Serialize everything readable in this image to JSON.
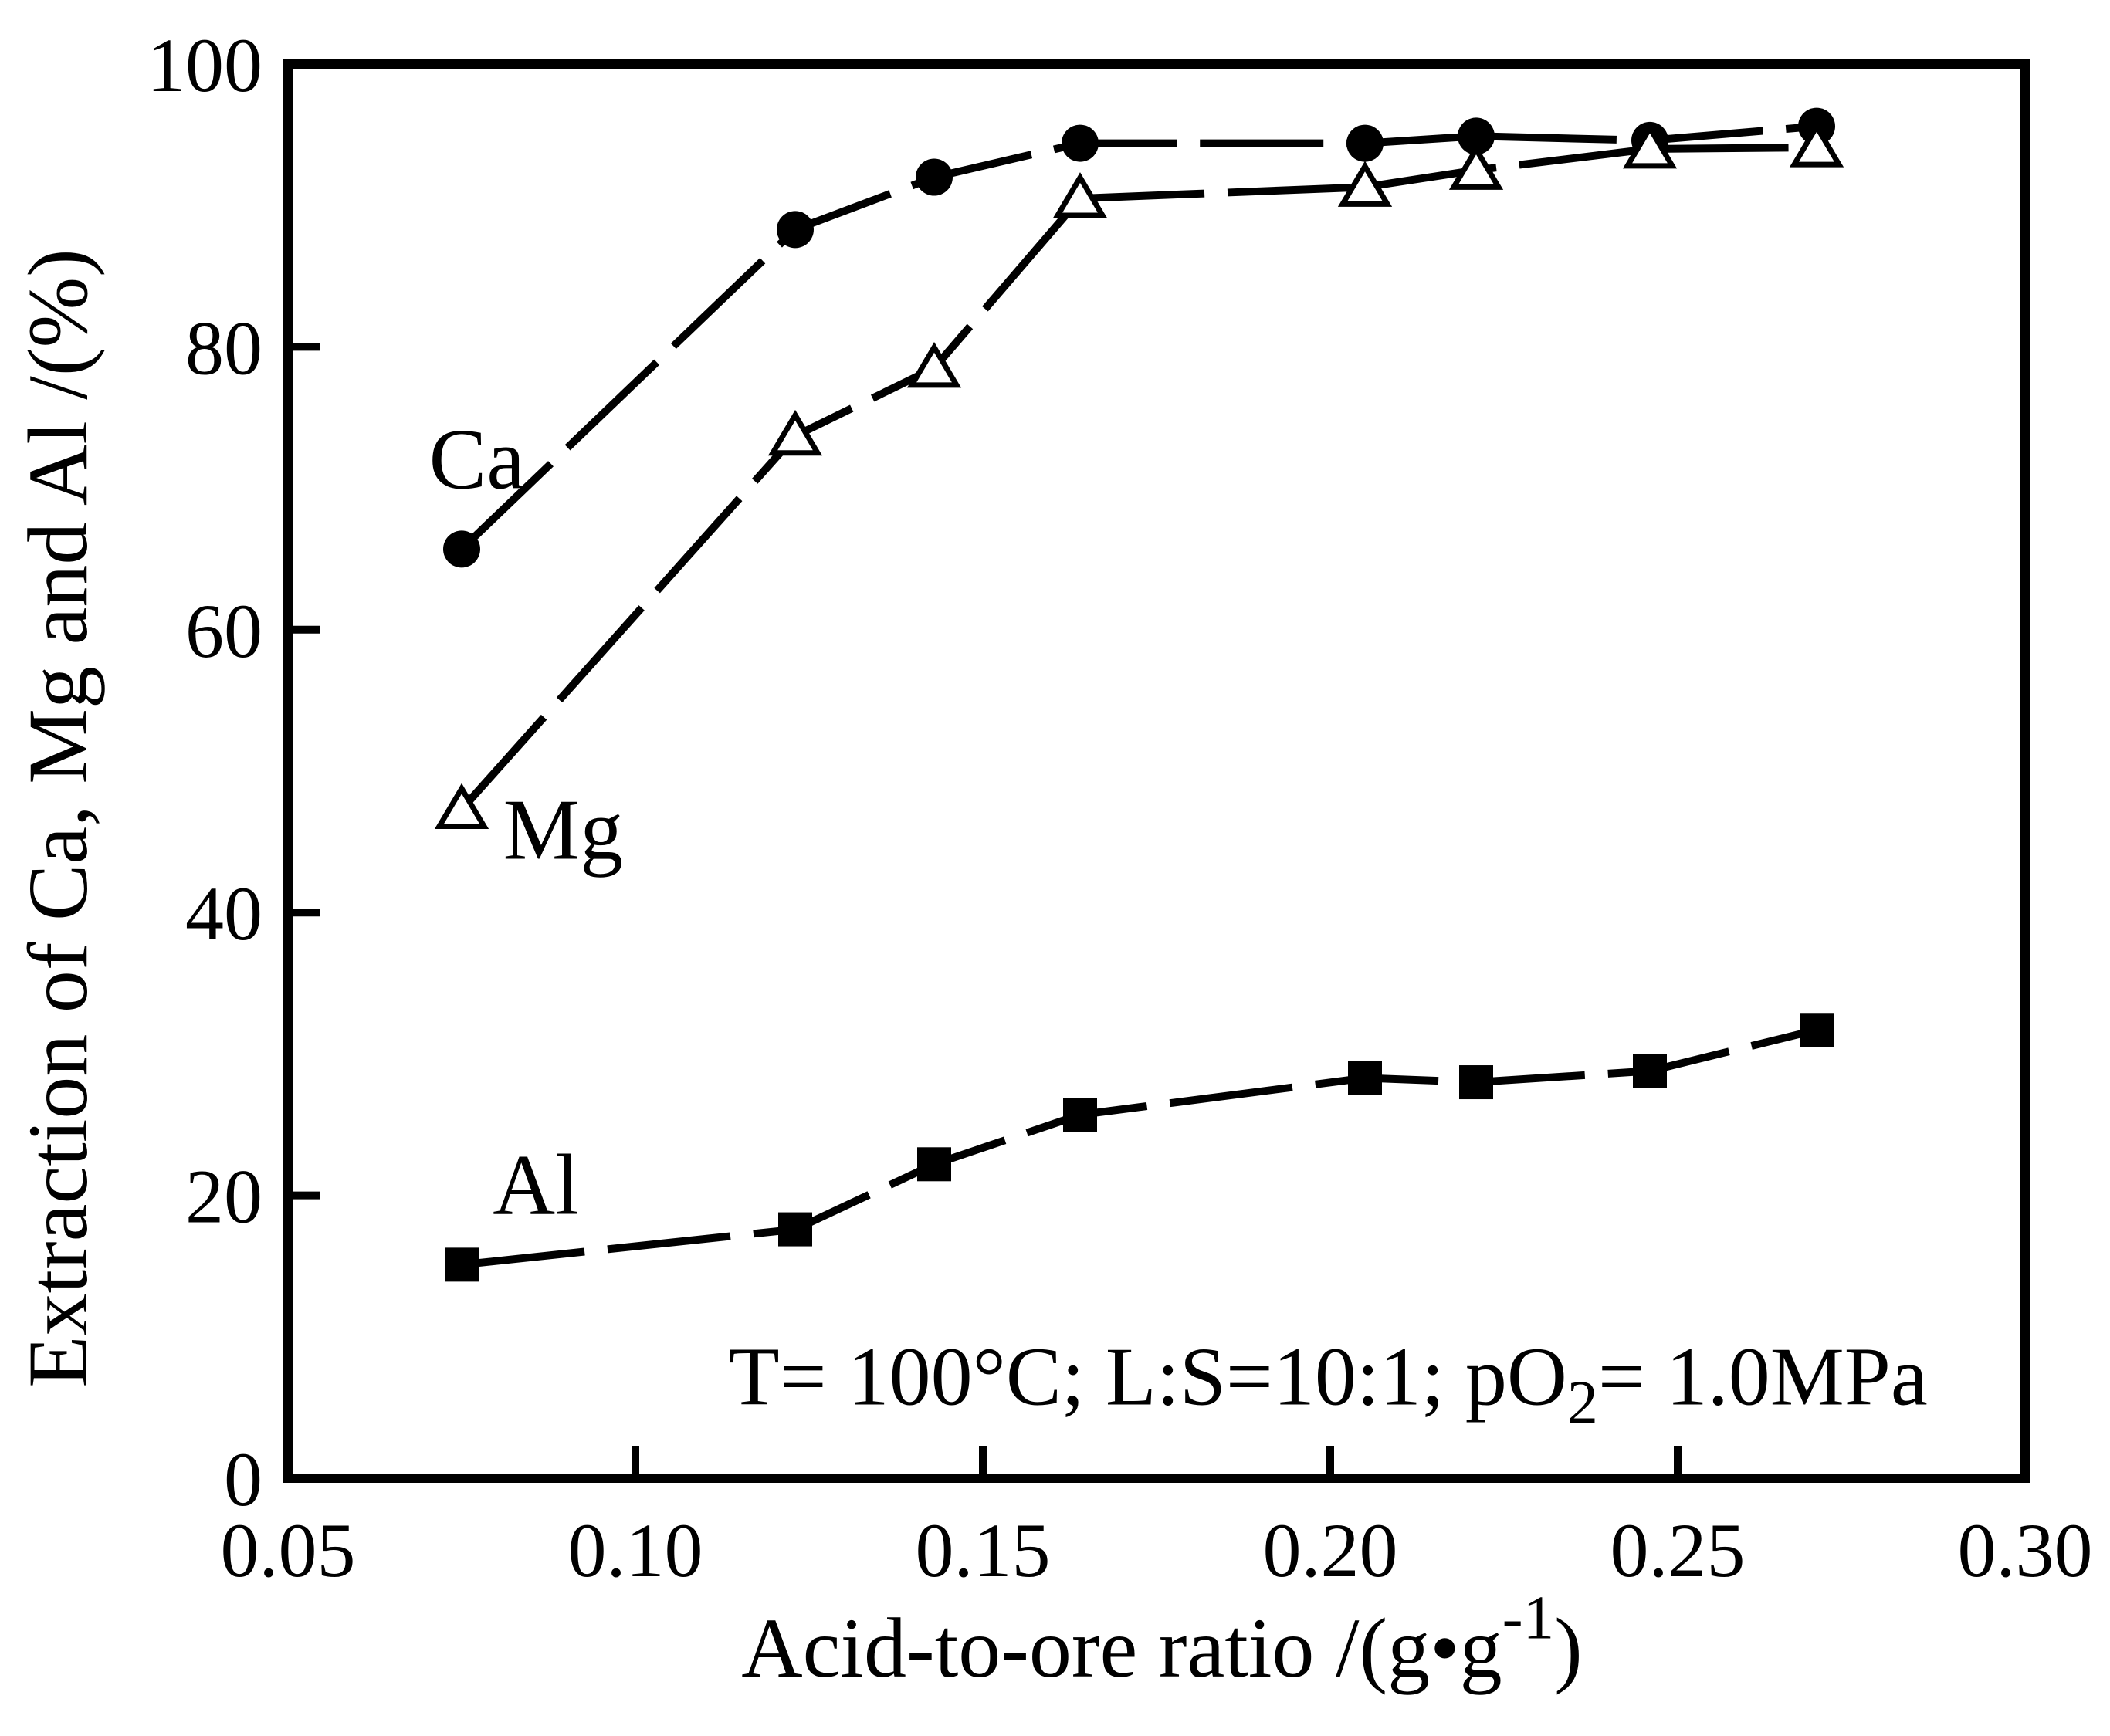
{
  "figure": {
    "background": "#ffffff",
    "ink_color": "#000000",
    "ylabel": "Extraction of Ca, Mg and Al /(%)",
    "xlabel_parts": [
      {
        "t": "Acid-to-ore ratio /(g•g"
      },
      {
        "t": "-1",
        "sup": true
      },
      {
        "t": ")"
      }
    ],
    "annotation_parts": [
      {
        "t": "T= 100°C; L:S=10:1; pO"
      },
      {
        "t": "2",
        "sub": true
      },
      {
        "t": "= 1.0MPa"
      }
    ]
  },
  "chart_data": {
    "type": "line",
    "title": "",
    "xlabel": "Acid-to-ore ratio /(g•g-1)",
    "ylabel": "Extraction of Ca, Mg and Al /(%)",
    "annotation": "T= 100°C; L:S=10:1; pO2= 1.0MPa",
    "annotation_at": {
      "x": 0.1997,
      "y": 5.2
    },
    "xlim": [
      0.05,
      0.3
    ],
    "ylim": [
      0,
      100
    ],
    "grid": false,
    "legend": "inline-labels",
    "xticks": [
      0.05,
      0.1,
      0.15,
      0.2,
      0.25,
      0.3
    ],
    "xtick_labels": [
      "0.05",
      "0.10",
      "0.15",
      "0.20",
      "0.25",
      "0.30"
    ],
    "yticks": [
      0,
      20,
      40,
      60,
      80,
      100
    ],
    "ytick_labels": [
      "0",
      "20",
      "40",
      "60",
      "80",
      "100"
    ],
    "x": [
      0.075,
      0.123,
      0.143,
      0.164,
      0.205,
      0.221,
      0.246,
      0.27
    ],
    "series": [
      {
        "name": "Ca",
        "marker": "filled-circle",
        "values": [
          65.7,
          88.3,
          92.0,
          94.4,
          94.4,
          94.9,
          94.6,
          95.6
        ],
        "label_at": {
          "x": 0.0772,
          "y": 70.0
        }
      },
      {
        "name": "Mg",
        "marker": "open-triangle",
        "values": [
          47.3,
          73.7,
          78.5,
          90.5,
          91.3,
          92.5,
          94.0,
          94.1
        ],
        "label_at": {
          "x": 0.0896,
          "y": 43.8
        }
      },
      {
        "name": "Al",
        "marker": "filled-square",
        "values": [
          15.1,
          17.6,
          22.2,
          25.7,
          28.3,
          28.0,
          28.8,
          31.7
        ],
        "label_at": {
          "x": 0.0857,
          "y": 18.7
        }
      }
    ]
  }
}
